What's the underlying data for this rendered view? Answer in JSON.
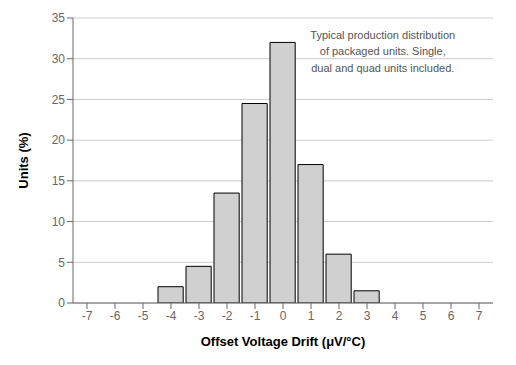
{
  "chart_data": {
    "type": "bar",
    "xlabel": "Offset Voltage Drift (μV/°C)",
    "ylabel": "Units (%)",
    "annotation": "Typical production distribution\nof packaged units. Single,\ndual and quad units included.",
    "x": [
      -4,
      -3,
      -2,
      -1,
      0,
      1,
      2,
      3
    ],
    "values": [
      2.0,
      4.5,
      13.5,
      24.5,
      32.0,
      17.0,
      6.0,
      1.5
    ],
    "color": "#d0d0d0",
    "xlim": [
      -7.5,
      7.5
    ],
    "xticks": [
      -7,
      -6,
      -5,
      -4,
      -3,
      -2,
      -1,
      0,
      1,
      2,
      3,
      4,
      5,
      6,
      7
    ],
    "ylim": [
      0,
      35
    ],
    "yticks": [
      0,
      5,
      10,
      15,
      20,
      25,
      30,
      35
    ],
    "grid": true
  }
}
